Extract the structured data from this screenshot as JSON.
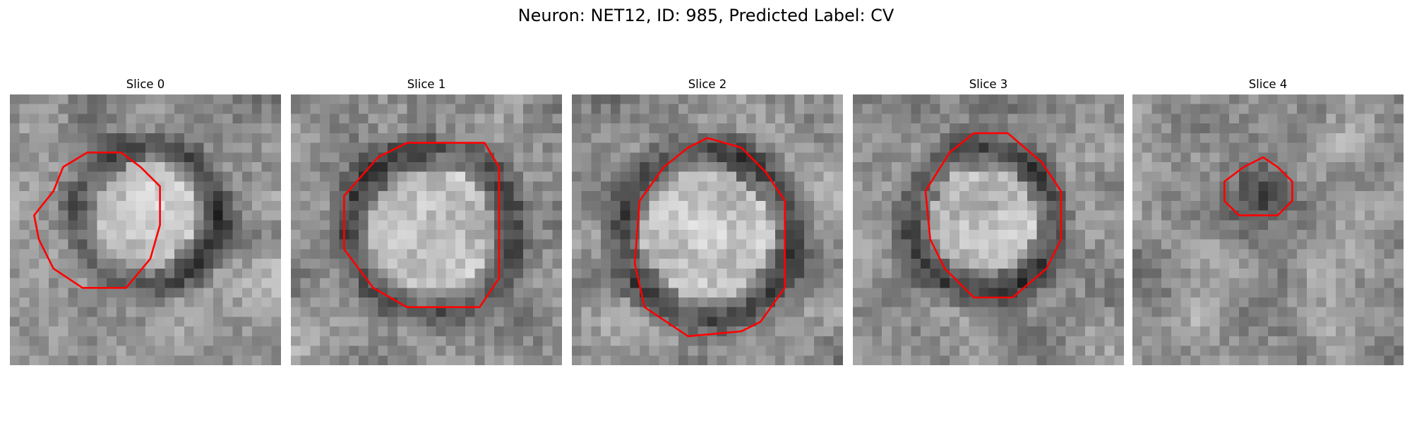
{
  "figure": {
    "title": "Neuron: NET12, ID: 985, Predicted Label: CV"
  },
  "panels": [
    {
      "title": "Slice 0",
      "image": "grayscale-microscopy-patch",
      "outline_color": "#ff0000"
    },
    {
      "title": "Slice 1",
      "image": "grayscale-microscopy-patch",
      "outline_color": "#ff0000"
    },
    {
      "title": "Slice 2",
      "image": "grayscale-microscopy-patch",
      "outline_color": "#ff0000"
    },
    {
      "title": "Slice 3",
      "image": "grayscale-microscopy-patch",
      "outline_color": "#ff0000"
    },
    {
      "title": "Slice 4",
      "image": "grayscale-microscopy-patch",
      "outline_color": "#ff0000"
    }
  ]
}
